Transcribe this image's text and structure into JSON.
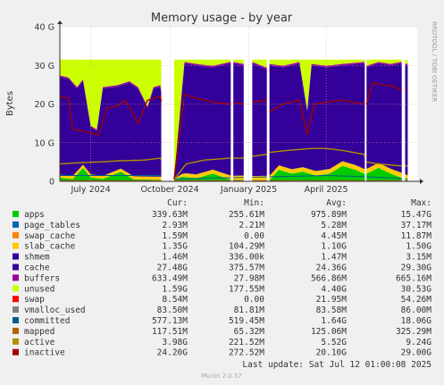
{
  "chart_data": {
    "type": "area",
    "title": "Memory usage - by year",
    "ylabel": "Bytes",
    "side_label": "RRDTOOL / TOBI OETIKER",
    "footer": "Munin 2.0.57",
    "last_update": "Last update: Sat Jul 12 01:00:08 2025",
    "ylim": [
      0,
      40
    ],
    "yunit": "G",
    "y_ticks": [
      {
        "value": 0,
        "label": "0"
      },
      {
        "value": 10,
        "label": "10 G"
      },
      {
        "value": 20,
        "label": "20 G"
      },
      {
        "value": 30,
        "label": "30 G"
      },
      {
        "value": 40,
        "label": "40 G"
      }
    ],
    "xlim": [
      "2024-05-26",
      "2025-07-16"
    ],
    "x_ticks": [
      {
        "date": "2024-07-01",
        "label": "July 2024"
      },
      {
        "date": "2024-10-01",
        "label": "October 2024"
      },
      {
        "date": "2025-01-01",
        "label": "January 2025"
      },
      {
        "date": "2025-04-01",
        "label": "April 2025"
      }
    ],
    "gaps": [
      [
        "2024-09-21",
        "2024-10-06"
      ],
      [
        "2024-12-11",
        "2024-12-14"
      ],
      [
        "2024-12-26",
        "2025-01-05"
      ],
      [
        "2025-01-22",
        "2025-01-25"
      ],
      [
        "2025-05-16",
        "2025-05-18"
      ],
      [
        "2025-06-28",
        "2025-07-02"
      ],
      [
        "2025-07-05",
        "2025-07-16"
      ]
    ],
    "columns": [
      "Cur:",
      "Min:",
      "Avg:",
      "Max:"
    ],
    "legend": [
      {
        "name": "apps",
        "color": "#00cc00",
        "cur": "339.63M",
        "min": "255.61M",
        "avg": "975.89M",
        "max": "15.47G"
      },
      {
        "name": "page_tables",
        "color": "#0066b3",
        "cur": "2.93M",
        "min": "2.21M",
        "avg": "5.28M",
        "max": "37.17M"
      },
      {
        "name": "swap_cache",
        "color": "#ff8000",
        "cur": "1.59M",
        "min": "0.00",
        "avg": "4.45M",
        "max": "11.87M"
      },
      {
        "name": "slab_cache",
        "color": "#ffcc00",
        "cur": "1.35G",
        "min": "104.29M",
        "avg": "1.10G",
        "max": "1.50G"
      },
      {
        "name": "shmem",
        "color": "#330099",
        "cur": "1.46M",
        "min": "336.00k",
        "avg": "1.47M",
        "max": "3.15M"
      },
      {
        "name": "cache",
        "color": "#330099",
        "cur": "27.48G",
        "min": "375.57M",
        "avg": "24.36G",
        "max": "29.30G"
      },
      {
        "name": "buffers",
        "color": "#990099",
        "cur": "633.49M",
        "min": "27.98M",
        "avg": "566.86M",
        "max": "665.16M"
      },
      {
        "name": "unused",
        "color": "#ccff00",
        "cur": "1.59G",
        "min": "177.55M",
        "avg": "4.40G",
        "max": "30.53G"
      },
      {
        "name": "swap",
        "color": "#ff0000",
        "cur": "8.54M",
        "min": "0.00",
        "avg": "21.95M",
        "max": "54.26M"
      },
      {
        "name": "vmalloc_used",
        "color": "#808080",
        "cur": "83.50M",
        "min": "81.81M",
        "avg": "83.58M",
        "max": "86.00M"
      },
      {
        "name": "committed",
        "color": "#005c8f",
        "cur": "577.13M",
        "min": "519.45M",
        "avg": "1.64G",
        "max": "18.06G"
      },
      {
        "name": "mapped",
        "color": "#b36200",
        "cur": "117.51M",
        "min": "65.32M",
        "avg": "125.06M",
        "max": "325.29M"
      },
      {
        "name": "active",
        "color": "#b38f00",
        "cur": "3.98G",
        "min": "221.52M",
        "avg": "5.52G",
        "max": "9.24G"
      },
      {
        "name": "inactive",
        "color": "#a10000",
        "cur": "24.20G",
        "min": "272.52M",
        "avg": "20.10G",
        "max": "29.00G"
      }
    ],
    "series_points": {
      "apps": [
        [
          "2024-05-26",
          0.9
        ],
        [
          "2024-06-10",
          0.6
        ],
        [
          "2024-06-22",
          3.5
        ],
        [
          "2024-07-01",
          1.0
        ],
        [
          "2024-07-15",
          0.6
        ],
        [
          "2024-08-05",
          2.5
        ],
        [
          "2024-08-20",
          0.5
        ],
        [
          "2024-09-20",
          0.4
        ],
        [
          "2024-10-06",
          0.3
        ],
        [
          "2024-10-15",
          1.2
        ],
        [
          "2024-11-01",
          0.8
        ],
        [
          "2024-11-20",
          2.0
        ],
        [
          "2024-12-10",
          0.5
        ],
        [
          "2024-12-14",
          0.4
        ],
        [
          "2024-12-25",
          0.4
        ],
        [
          "2025-01-05",
          0.3
        ],
        [
          "2025-01-22",
          0.3
        ],
        [
          "2025-01-25",
          0.3
        ],
        [
          "2025-02-05",
          3.0
        ],
        [
          "2025-02-20",
          2.0
        ],
        [
          "2025-03-05",
          2.5
        ],
        [
          "2025-03-20",
          1.5
        ],
        [
          "2025-04-05",
          2.0
        ],
        [
          "2025-04-20",
          4.0
        ],
        [
          "2025-05-05",
          3.0
        ],
        [
          "2025-05-15",
          2.0
        ],
        [
          "2025-05-18",
          2.0
        ],
        [
          "2025-06-01",
          3.5
        ],
        [
          "2025-06-15",
          2.0
        ],
        [
          "2025-06-27",
          1.0
        ],
        [
          "2025-07-02",
          0.5
        ],
        [
          "2025-07-05",
          0.3
        ]
      ],
      "slab_cache": [
        [
          "2024-05-26",
          0.8
        ],
        [
          "2024-09-20",
          0.8
        ],
        [
          "2024-10-06",
          0.2
        ],
        [
          "2024-10-20",
          1.0
        ],
        [
          "2025-07-05",
          1.3
        ]
      ],
      "cache_top": [
        [
          "2024-05-26",
          27.0
        ],
        [
          "2024-06-05",
          26.5
        ],
        [
          "2024-06-15",
          24.0
        ],
        [
          "2024-06-22",
          26.0
        ],
        [
          "2024-07-01",
          14.0
        ],
        [
          "2024-07-08",
          13.0
        ],
        [
          "2024-07-15",
          24.0
        ],
        [
          "2024-08-01",
          24.5
        ],
        [
          "2024-08-15",
          25.5
        ],
        [
          "2024-08-25",
          24.0
        ],
        [
          "2024-09-05",
          19.0
        ],
        [
          "2024-09-12",
          24.0
        ],
        [
          "2024-09-20",
          24.5
        ],
        [
          "2024-10-06",
          0.8
        ],
        [
          "2024-10-18",
          30.5
        ],
        [
          "2024-11-01",
          30.0
        ],
        [
          "2024-11-20",
          29.5
        ],
        [
          "2024-12-10",
          30.5
        ],
        [
          "2024-12-14",
          30.5
        ],
        [
          "2024-12-25",
          30.0
        ],
        [
          "2025-01-05",
          30.5
        ],
        [
          "2025-01-22",
          29.0
        ],
        [
          "2025-01-25",
          30.0
        ],
        [
          "2025-02-10",
          29.5
        ],
        [
          "2025-03-01",
          30.5
        ],
        [
          "2025-03-10",
          18.0
        ],
        [
          "2025-03-15",
          30.0
        ],
        [
          "2025-04-01",
          29.5
        ],
        [
          "2025-04-20",
          30.0
        ],
        [
          "2025-05-15",
          30.5
        ],
        [
          "2025-05-18",
          29.5
        ],
        [
          "2025-06-01",
          30.5
        ],
        [
          "2025-06-15",
          30.0
        ],
        [
          "2025-06-27",
          30.5
        ],
        [
          "2025-07-02",
          30.0
        ],
        [
          "2025-07-05",
          30.0
        ]
      ],
      "unused_top": [
        [
          "2024-05-26",
          31.5
        ],
        [
          "2024-09-20",
          31.5
        ],
        [
          "2024-10-06",
          31.5
        ],
        [
          "2025-07-05",
          31.5
        ]
      ],
      "inactive": [
        [
          "2024-05-26",
          22.0
        ],
        [
          "2024-06-05",
          21.5
        ],
        [
          "2024-06-10",
          13.5
        ],
        [
          "2024-06-22",
          13.0
        ],
        [
          "2024-07-01",
          12.5
        ],
        [
          "2024-07-10",
          12.0
        ],
        [
          "2024-07-20",
          19.0
        ],
        [
          "2024-08-01",
          19.5
        ],
        [
          "2024-08-10",
          21.0
        ],
        [
          "2024-08-25",
          15.0
        ],
        [
          "2024-09-05",
          21.0
        ],
        [
          "2024-09-20",
          22.0
        ],
        [
          "2024-10-06",
          0.5
        ],
        [
          "2024-10-18",
          22.5
        ],
        [
          "2024-11-01",
          21.5
        ],
        [
          "2024-11-20",
          20.5
        ],
        [
          "2024-12-10",
          20.0
        ],
        [
          "2024-12-14",
          20.5
        ],
        [
          "2024-12-25",
          20.0
        ],
        [
          "2025-01-05",
          20.5
        ],
        [
          "2025-01-22",
          21.0
        ],
        [
          "2025-01-25",
          18.0
        ],
        [
          "2025-02-10",
          20.0
        ],
        [
          "2025-03-01",
          21.0
        ],
        [
          "2025-03-10",
          12.0
        ],
        [
          "2025-03-18",
          20.0
        ],
        [
          "2025-04-01",
          20.5
        ],
        [
          "2025-04-20",
          21.0
        ],
        [
          "2025-05-15",
          20.0
        ],
        [
          "2025-05-18",
          20.0
        ],
        [
          "2025-05-25",
          25.5
        ],
        [
          "2025-06-05",
          25.0
        ],
        [
          "2025-06-20",
          24.5
        ],
        [
          "2025-06-27",
          23.5
        ],
        [
          "2025-07-02",
          24.0
        ],
        [
          "2025-07-05",
          24.2
        ]
      ],
      "active": [
        [
          "2024-05-26",
          4.5
        ],
        [
          "2024-06-15",
          4.8
        ],
        [
          "2024-07-10",
          5.0
        ],
        [
          "2024-08-01",
          5.3
        ],
        [
          "2024-09-01",
          5.5
        ],
        [
          "2024-09-20",
          6.0
        ],
        [
          "2024-10-06",
          0.5
        ],
        [
          "2024-10-20",
          4.5
        ],
        [
          "2024-11-10",
          5.5
        ],
        [
          "2024-12-10",
          6.0
        ],
        [
          "2024-12-14",
          6.0
        ],
        [
          "2024-12-25",
          6.0
        ],
        [
          "2025-01-05",
          6.5
        ],
        [
          "2025-01-22",
          7.0
        ],
        [
          "2025-01-25",
          7.5
        ],
        [
          "2025-02-15",
          8.0
        ],
        [
          "2025-03-15",
          8.5
        ],
        [
          "2025-04-01",
          8.5
        ],
        [
          "2025-04-20",
          8.0
        ],
        [
          "2025-05-15",
          7.0
        ],
        [
          "2025-05-18",
          5.0
        ],
        [
          "2025-06-01",
          4.5
        ],
        [
          "2025-06-27",
          4.0
        ],
        [
          "2025-07-02",
          4.0
        ],
        [
          "2025-07-05",
          4.0
        ]
      ],
      "committed": [
        [
          "2024-05-26",
          1.5
        ],
        [
          "2024-09-20",
          1.5
        ],
        [
          "2024-10-06",
          0.6
        ],
        [
          "2025-04-01",
          1.5
        ],
        [
          "2025-05-18",
          1.2
        ],
        [
          "2025-07-05",
          0.6
        ]
      ],
      "mapped": [
        [
          "2024-05-26",
          0.2
        ],
        [
          "2025-07-05",
          0.15
        ]
      ]
    }
  }
}
